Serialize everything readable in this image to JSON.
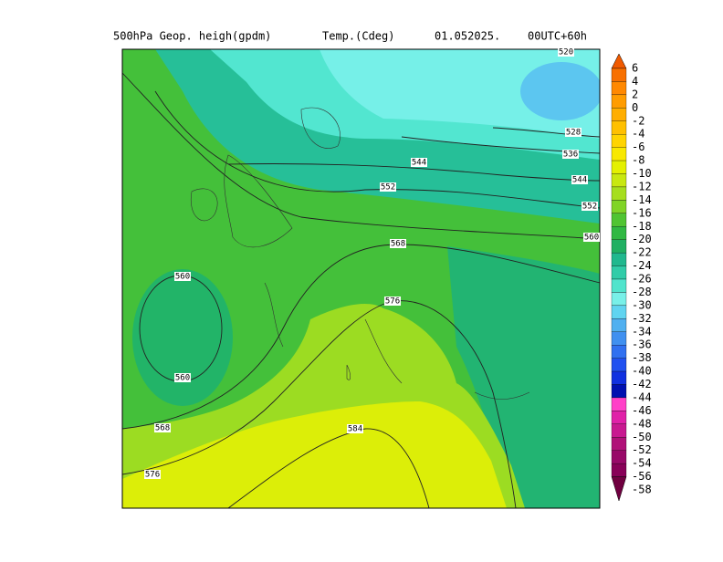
{
  "header": {
    "field": "500hPa  Geop. heigh(gpdm)",
    "temp": "Temp.(Cdeg)",
    "date": "01.052025.",
    "run": "00UTC+60h"
  },
  "colorbar": {
    "levels": [
      {
        "value": 6,
        "color": "#f05a00"
      },
      {
        "value": 4,
        "color": "#f87000"
      },
      {
        "value": 2,
        "color": "#ff8800"
      },
      {
        "value": 0,
        "color": "#ff9c00"
      },
      {
        "value": -2,
        "color": "#ffae00"
      },
      {
        "value": -4,
        "color": "#ffc000"
      },
      {
        "value": -6,
        "color": "#ffd400"
      },
      {
        "value": -8,
        "color": "#f8e800"
      },
      {
        "value": -10,
        "color": "#e4f000"
      },
      {
        "value": -12,
        "color": "#c8e810"
      },
      {
        "value": -14,
        "color": "#a6de1e"
      },
      {
        "value": -16,
        "color": "#80d426"
      },
      {
        "value": -18,
        "color": "#50c432"
      },
      {
        "value": -20,
        "color": "#30b842"
      },
      {
        "value": -22,
        "color": "#20b062"
      },
      {
        "value": -24,
        "color": "#20b88e"
      },
      {
        "value": -26,
        "color": "#30cca8"
      },
      {
        "value": -28,
        "color": "#50e4cc"
      },
      {
        "value": -30,
        "color": "#78f0e8"
      },
      {
        "value": -32,
        "color": "#60d4f0"
      },
      {
        "value": -34,
        "color": "#50b0f0"
      },
      {
        "value": -36,
        "color": "#4090f0"
      },
      {
        "value": -38,
        "color": "#3070f0"
      },
      {
        "value": -40,
        "color": "#2050f0"
      },
      {
        "value": -42,
        "color": "#1030e0"
      },
      {
        "value": -44,
        "color": "#0010b0"
      },
      {
        "value": -46,
        "color": "#ff40c8"
      },
      {
        "value": -48,
        "color": "#e020a8"
      },
      {
        "value": -50,
        "color": "#c81890"
      },
      {
        "value": -52,
        "color": "#b01078"
      },
      {
        "value": -54,
        "color": "#980868"
      },
      {
        "value": -56,
        "color": "#880058"
      },
      {
        "value": -58,
        "color": "#700040"
      }
    ]
  },
  "contour_labels": [
    520,
    528,
    536,
    544,
    544,
    552,
    552,
    560,
    568,
    560,
    576,
    560,
    568,
    584,
    576
  ]
}
